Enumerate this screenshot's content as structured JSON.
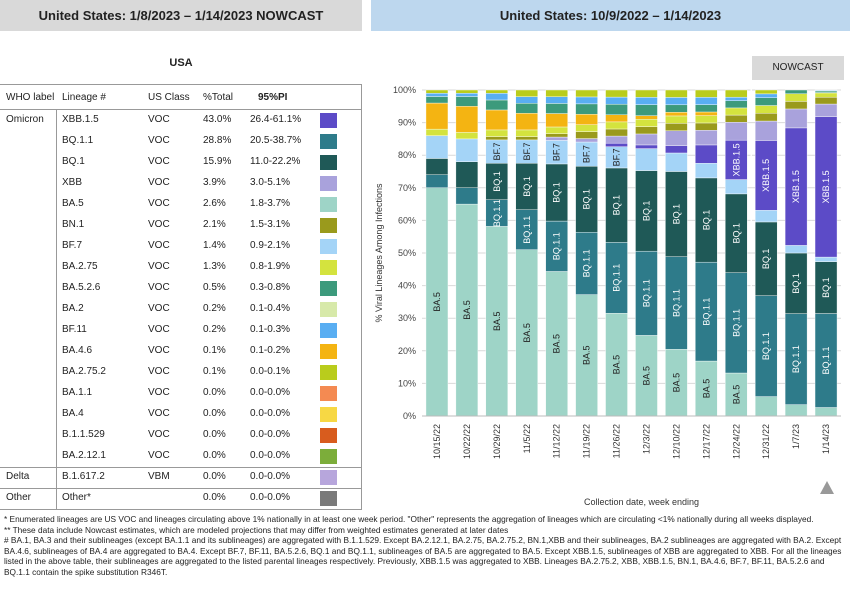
{
  "header_left": "United States: 1/8/2023 – 1/14/2023 NOWCAST",
  "header_right": "United States: 10/9/2022 – 1/14/2023",
  "region": "USA",
  "table": {
    "columns": [
      "WHO label",
      "Lineage #",
      "US Class",
      "%Total",
      "95%PI"
    ],
    "rows": [
      {
        "who": "Omicron",
        "lineage": "XBB.1.5",
        "cls": "VOC",
        "pct": "43.0%",
        "pi": "26.4-61.1%",
        "color": "#5c4bc7"
      },
      {
        "who": "",
        "lineage": "BQ.1.1",
        "cls": "VOC",
        "pct": "28.8%",
        "pi": "20.5-38.7%",
        "color": "#2e7b8a"
      },
      {
        "who": "",
        "lineage": "BQ.1",
        "cls": "VOC",
        "pct": "15.9%",
        "pi": "11.0-22.2%",
        "color": "#1f5957"
      },
      {
        "who": "",
        "lineage": "XBB",
        "cls": "VOC",
        "pct": "3.9%",
        "pi": "3.0-5.1%",
        "color": "#a9a2dc"
      },
      {
        "who": "",
        "lineage": "BA.5",
        "cls": "VOC",
        "pct": "2.6%",
        "pi": "1.8-3.7%",
        "color": "#9ed4c7"
      },
      {
        "who": "",
        "lineage": "BN.1",
        "cls": "VOC",
        "pct": "2.1%",
        "pi": "1.5-3.1%",
        "color": "#9a9a1c"
      },
      {
        "who": "",
        "lineage": "BF.7",
        "cls": "VOC",
        "pct": "1.4%",
        "pi": "0.9-2.1%",
        "color": "#a4d4f7"
      },
      {
        "who": "",
        "lineage": "BA.2.75",
        "cls": "VOC",
        "pct": "1.3%",
        "pi": "0.8-1.9%",
        "color": "#d4e33e"
      },
      {
        "who": "",
        "lineage": "BA.5.2.6",
        "cls": "VOC",
        "pct": "0.5%",
        "pi": "0.3-0.8%",
        "color": "#3c9a7c"
      },
      {
        "who": "",
        "lineage": "BA.2",
        "cls": "VOC",
        "pct": "0.2%",
        "pi": "0.1-0.4%",
        "color": "#d7e9a9"
      },
      {
        "who": "",
        "lineage": "BF.11",
        "cls": "VOC",
        "pct": "0.2%",
        "pi": "0.1-0.3%",
        "color": "#59aef2"
      },
      {
        "who": "",
        "lineage": "BA.4.6",
        "cls": "VOC",
        "pct": "0.1%",
        "pi": "0.1-0.2%",
        "color": "#f4b412"
      },
      {
        "who": "",
        "lineage": "BA.2.75.2",
        "cls": "VOC",
        "pct": "0.1%",
        "pi": "0.0-0.1%",
        "color": "#b9cc1c"
      },
      {
        "who": "",
        "lineage": "BA.1.1",
        "cls": "VOC",
        "pct": "0.0%",
        "pi": "0.0-0.0%",
        "color": "#f48a52"
      },
      {
        "who": "",
        "lineage": "BA.4",
        "cls": "VOC",
        "pct": "0.0%",
        "pi": "0.0-0.0%",
        "color": "#f7d844"
      },
      {
        "who": "",
        "lineage": "B.1.1.529",
        "cls": "VOC",
        "pct": "0.0%",
        "pi": "0.0-0.0%",
        "color": "#d85c1e"
      },
      {
        "who": "",
        "lineage": "BA.2.12.1",
        "cls": "VOC",
        "pct": "0.0%",
        "pi": "0.0-0.0%",
        "color": "#7cad3a"
      },
      {
        "who": "Delta",
        "lineage": "B.1.617.2",
        "cls": "VBM",
        "pct": "0.0%",
        "pi": "0.0-0.0%",
        "color": "#b7a6dc"
      },
      {
        "who": "Other",
        "lineage": "Other*",
        "cls": "",
        "pct": "0.0%",
        "pi": "0.0-0.0%",
        "color": "#7a7a7a"
      }
    ]
  },
  "nowcast_label": "NOWCAST",
  "chart_data": {
    "type": "bar",
    "stacked": true,
    "ylabel": "% Viral Lineages Among Infections",
    "xlabel": "Collection date, week ending",
    "ylim": [
      0,
      100
    ],
    "yticks": [
      "0%",
      "10%",
      "20%",
      "30%",
      "40%",
      "50%",
      "60%",
      "70%",
      "80%",
      "90%",
      "100%"
    ],
    "categories": [
      "10/15/22",
      "10/22/22",
      "10/29/22",
      "11/5/22",
      "11/12/22",
      "11/19/22",
      "11/26/22",
      "12/3/22",
      "12/10/22",
      "12/17/22",
      "12/24/22",
      "12/31/22",
      "1/7/23",
      "1/14/23"
    ],
    "nowcast_categories": [
      "12/31/22",
      "1/7/23",
      "1/14/23"
    ],
    "series": [
      {
        "name": "BA.5",
        "color": "#9ed4c7",
        "values": [
          70,
          65,
          57,
          50,
          43,
          35,
          29,
          22,
          18,
          15,
          12,
          5,
          3,
          2.6
        ]
      },
      {
        "name": "BQ.1.1",
        "color": "#2e7b8a",
        "values": [
          4,
          5,
          8,
          12,
          15,
          18,
          20,
          23,
          25,
          27,
          28,
          26,
          24,
          28.8
        ]
      },
      {
        "name": "BQ.1",
        "color": "#1f5957",
        "values": [
          5,
          8,
          11,
          14,
          17,
          19,
          21,
          22,
          23,
          23,
          22,
          19,
          16,
          15.9
        ]
      },
      {
        "name": "BF.7",
        "color": "#a4d4f7",
        "values": [
          7,
          7,
          7,
          7,
          7,
          7,
          6,
          6,
          5,
          4,
          4,
          3,
          2,
          1.4
        ]
      },
      {
        "name": "XBB.1.5",
        "color": "#5c4bc7",
        "values": [
          0,
          0,
          0,
          0,
          0,
          0,
          1,
          1,
          2,
          5,
          11,
          18,
          31,
          43
        ]
      },
      {
        "name": "XBB",
        "color": "#a9a2dc",
        "values": [
          0,
          0,
          0,
          0,
          1,
          1,
          2,
          3,
          4,
          4,
          5,
          5,
          5,
          3.9
        ]
      },
      {
        "name": "BN.1",
        "color": "#9a9a1c",
        "values": [
          0,
          0,
          1,
          1,
          1,
          2,
          2,
          2,
          2,
          2,
          2,
          2,
          2,
          2.1
        ]
      },
      {
        "name": "BA.2.75",
        "color": "#d4e33e",
        "values": [
          2,
          2,
          2,
          2,
          2,
          2,
          2,
          2,
          2,
          2,
          2,
          2,
          2,
          1.3
        ]
      },
      {
        "name": "BA.4.6",
        "color": "#f4b412",
        "values": [
          8,
          8,
          6,
          5,
          4,
          3,
          2,
          1,
          1,
          1,
          0,
          0,
          0,
          0.1
        ]
      },
      {
        "name": "BA.5.2.6",
        "color": "#3c9a7c",
        "values": [
          2,
          3,
          3,
          3,
          3,
          3,
          3,
          3,
          2,
          2,
          2,
          2,
          1,
          0.5
        ]
      },
      {
        "name": "BF.11",
        "color": "#59aef2",
        "values": [
          1,
          1,
          2,
          2,
          2,
          2,
          2,
          2,
          2,
          2,
          1,
          1,
          0,
          0.2
        ]
      },
      {
        "name": "BA.2.75.2",
        "color": "#b9cc1c",
        "values": [
          1,
          1,
          1,
          2,
          2,
          2,
          2,
          2,
          2,
          2,
          2,
          1,
          0,
          0.1
        ]
      }
    ],
    "bar_labels": [
      {
        "series": "BA.5",
        "from": 0,
        "to": 10
      },
      {
        "series": "BQ.1.1",
        "from": 2,
        "to": 13
      },
      {
        "series": "BQ.1",
        "from": 2,
        "to": 13
      },
      {
        "series": "BF.7",
        "from": 2,
        "to": 6
      },
      {
        "series": "XBB.1.5",
        "from": 10,
        "to": 13
      }
    ]
  },
  "footnotes": [
    "*     Enumerated lineages are US VOC and lineages circulating above 1% nationally in at least one week period. \"Other\" represents the aggregation of lineages which are circulating <1% nationally during all weeks displayed.",
    "**     These data include Nowcast estimates, which are modeled projections that may differ from weighted estimates generated at later dates",
    "#     BA.1, BA.3 and their sublineages (except BA.1.1 and its sublineages) are aggregated with B.1.1.529. Except BA.2.12.1, BA.2.75, BA.2.75.2, BN.1,XBB and their sublineages, BA.2 sublineages are aggregated with BA.2. Except BA.4.6, sublineages of BA.4 are aggregated to BA.4. Except BF.7, BF.11, BA.5.2.6, BQ.1 and BQ.1.1, sublineages of BA.5 are aggregated to BA.5. Except XBB.1.5, sublineages of XBB are aggregated to XBB. For all the lineages listed in the above table, their sublineages are aggregated to the listed parental lineages respectively. Previously, XBB.1.5 was aggregated to XBB. Lineages BA.2.75.2, XBB, XBB.1.5, BN.1, BA.4.6, BF.7, BF.11, BA.5.2.6 and BQ.1.1 contain the spike substitution R346T."
  ]
}
